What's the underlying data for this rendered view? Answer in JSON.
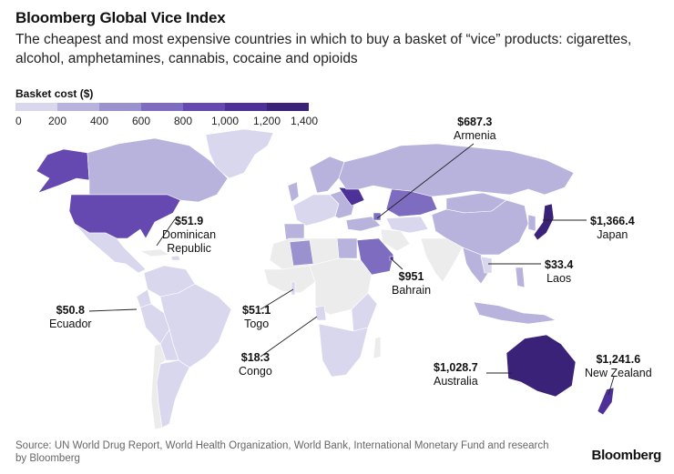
{
  "title": "Bloomberg Global Vice Index",
  "subtitle": "The cheapest and most expensive countries in which to buy a basket of “vice” products: cigarettes, alcohol, amphetamines, cannabis, cocaine and opioids",
  "legend": {
    "title": "Basket cost ($)",
    "ticks": [
      "0",
      "200",
      "400",
      "600",
      "800",
      "1,000",
      "1,200",
      "1,400"
    ],
    "colors": [
      "#d9d7ee",
      "#b7b3dd",
      "#9a92cf",
      "#7d6cc0",
      "#6548b0",
      "#4e3198",
      "#3a2278"
    ]
  },
  "chart_data": {
    "type": "choropleth",
    "value_unit": "Basket cost ($)",
    "color_range": [
      0,
      1400
    ],
    "labeled_countries": [
      {
        "country": "Armenia",
        "value": 687.3,
        "label": "$687.3"
      },
      {
        "country": "Japan",
        "value": 1366.4,
        "label": "$1,366.4"
      },
      {
        "country": "Dominican Republic",
        "value": 51.9,
        "label": "$51.9"
      },
      {
        "country": "Bahrain",
        "value": 951,
        "label": "$951"
      },
      {
        "country": "Laos",
        "value": 33.4,
        "label": "$33.4"
      },
      {
        "country": "Ecuador",
        "value": 50.8,
        "label": "$50.8"
      },
      {
        "country": "Togo",
        "value": 51.1,
        "label": "$51.1"
      },
      {
        "country": "Congo",
        "value": 18.3,
        "label": "$18.3"
      },
      {
        "country": "Australia",
        "value": 1028.7,
        "label": "$1,028.7"
      },
      {
        "country": "New Zealand",
        "value": 1241.6,
        "label": "$1,241.6"
      }
    ]
  },
  "labels": {
    "armenia": {
      "value": "$687.3",
      "country": "Armenia"
    },
    "japan": {
      "value": "$1,366.4",
      "country": "Japan"
    },
    "dominican": {
      "value": "$51.9",
      "country_line1": "Dominican",
      "country_line2": "Republic"
    },
    "bahrain": {
      "value": "$951",
      "country": "Bahrain"
    },
    "laos": {
      "value": "$33.4",
      "country": "Laos"
    },
    "ecuador": {
      "value": "$50.8",
      "country": "Ecuador"
    },
    "togo": {
      "value": "$51.1",
      "country": "Togo"
    },
    "congo": {
      "value": "$18.3",
      "country": "Congo"
    },
    "australia": {
      "value": "$1,028.7",
      "country": "Australia"
    },
    "newzealand": {
      "value": "$1,241.6",
      "country": "New Zealand"
    }
  },
  "source": "Source: UN World Drug Report, World Health Organization, World Bank, International Monetary Fund and research by Bloomberg",
  "brand": "Bloomberg"
}
